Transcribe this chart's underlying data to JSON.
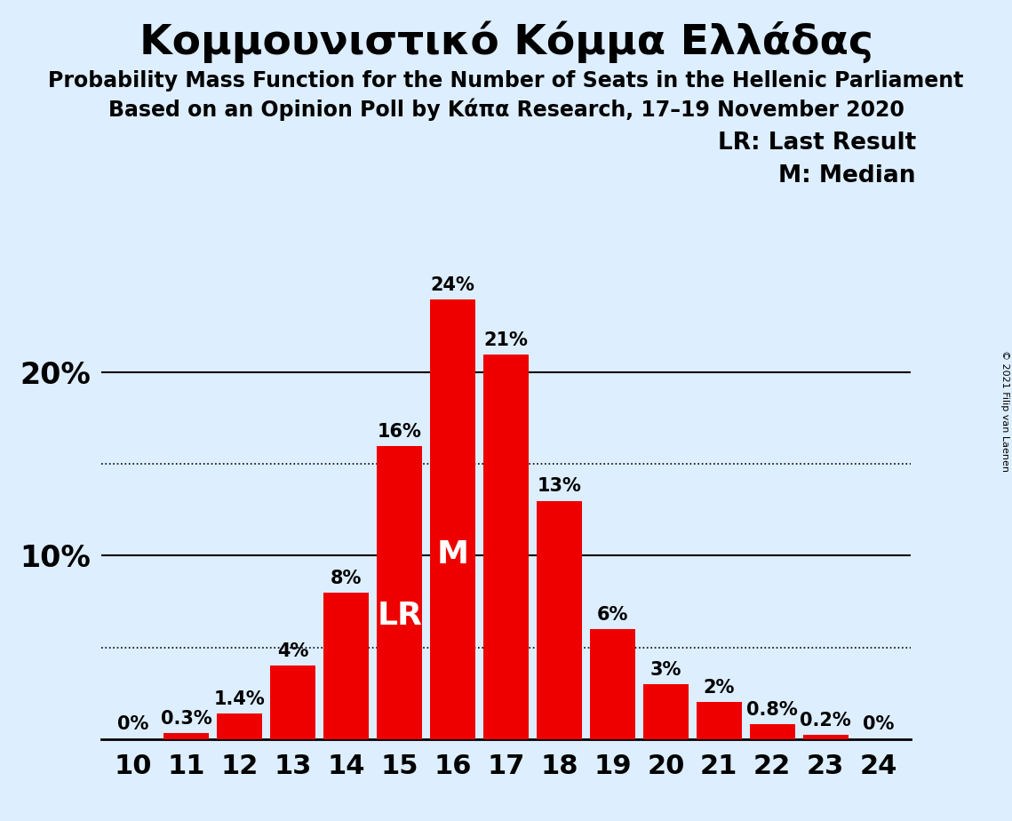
{
  "title": "Κομμουνιστικό Κόμμα Ελλάδας",
  "subtitle1": "Probability Mass Function for the Number of Seats in the Hellenic Parliament",
  "subtitle2": "Based on an Opinion Poll by Κάπα Research, 17–19 November 2020",
  "copyright": "© 2021 Filip van Laenen",
  "seats": [
    10,
    11,
    12,
    13,
    14,
    15,
    16,
    17,
    18,
    19,
    20,
    21,
    22,
    23,
    24
  ],
  "probabilities": [
    0.0,
    0.3,
    1.4,
    4.0,
    8.0,
    16.0,
    24.0,
    21.0,
    13.0,
    6.0,
    3.0,
    2.0,
    0.8,
    0.2,
    0.0
  ],
  "bar_color": "#ee0000",
  "background_color": "#ddeeff",
  "bar_labels": [
    "0%",
    "0.3%",
    "1.4%",
    "4%",
    "8%",
    "16%",
    "24%",
    "21%",
    "13%",
    "6%",
    "3%",
    "2%",
    "0.8%",
    "0.2%",
    "0%"
  ],
  "lr_seat": 15,
  "median_seat": 16,
  "lr_label": "LR",
  "median_label": "M",
  "legend_lr": "LR: Last Result",
  "legend_m": "M: Median",
  "ylim": [
    0,
    26
  ],
  "dotted_lines": [
    5.0,
    15.0
  ],
  "solid_lines": [
    10.0,
    20.0
  ],
  "title_fontsize": 34,
  "subtitle_fontsize": 17,
  "tick_fontsize": 22,
  "bar_label_fontsize": 15,
  "legend_fontsize": 19,
  "inbar_label_fontsize": 26,
  "ytick_fontsize": 24
}
